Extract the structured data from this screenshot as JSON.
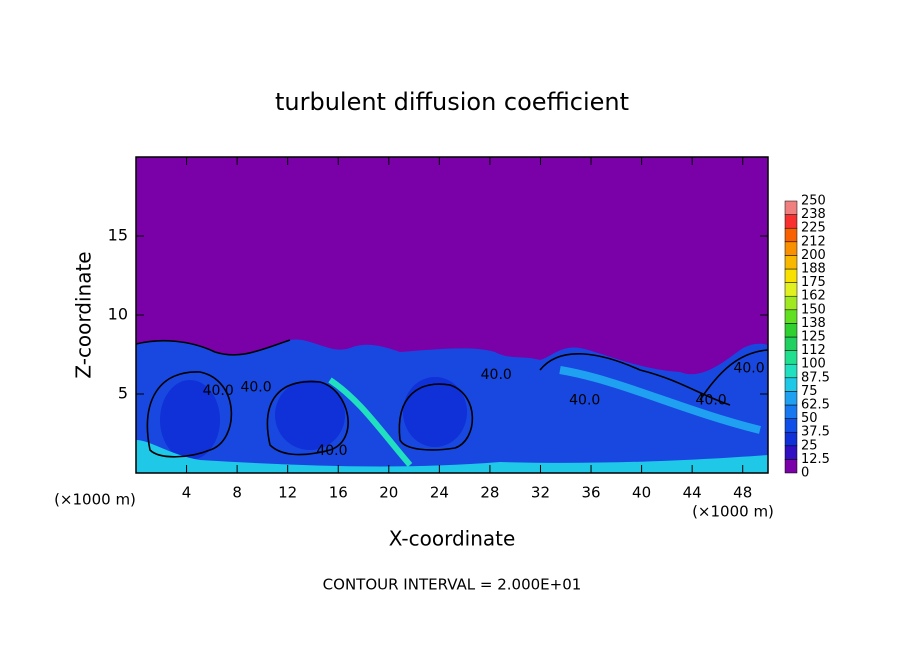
{
  "chart_data": {
    "type": "contour",
    "title": "turbulent diffusion coefficient",
    "x_label": "X-coordinate",
    "y_label": "Z-coordinate",
    "x_unit": "(×1000 m)",
    "footer": "CONTOUR INTERVAL = 2.000E+01",
    "xlim": [
      0,
      50
    ],
    "ylim": [
      0,
      20
    ],
    "xticks": [
      4,
      8,
      12,
      16,
      20,
      24,
      28,
      32,
      36,
      40,
      44,
      48
    ],
    "yticks": [
      5,
      10,
      15
    ],
    "contour_labels": [
      {
        "value": 40,
        "label": "40.0",
        "x": 6.5,
        "z": 5.2
      },
      {
        "value": 40,
        "label": "40.0",
        "x": 9.5,
        "z": 5.4
      },
      {
        "value": 40,
        "label": "40.0",
        "x": 15.5,
        "z": 1.4
      },
      {
        "value": 40,
        "label": "40.0",
        "x": 28.5,
        "z": 6.2
      },
      {
        "value": 40,
        "label": "40.0",
        "x": 35.5,
        "z": 4.6
      },
      {
        "value": 40,
        "label": "40.0",
        "x": 45.5,
        "z": 4.6
      },
      {
        "value": 40,
        "label": "40.0",
        "x": 48.5,
        "z": 6.6
      }
    ],
    "colorbar": {
      "levels": [
        0,
        12.5,
        25,
        37.5,
        50,
        62.5,
        75,
        87.5,
        100,
        {
          "value": 112.5,
          "label": "112"
        },
        125,
        {
          "value": 137.5,
          "label": "138"
        },
        150,
        {
          "value": 162.5,
          "label": "162"
        },
        175,
        {
          "value": 187.5,
          "label": "188"
        },
        200,
        {
          "value": 212.5,
          "label": "212"
        },
        225,
        {
          "value": 237.5,
          "label": "238"
        },
        250
      ],
      "colors": [
        "#7a00a8",
        "#3010c0",
        "#1030d8",
        "#1050e8",
        "#1878f0",
        "#20a0f0",
        "#20c8e8",
        "#20e0c0",
        "#20e090",
        "#20d060",
        "#30d030",
        "#60e020",
        "#a0e820",
        "#e0f020",
        "#f8e000",
        "#f8b800",
        "#f89000",
        "#f86000",
        "#f83030",
        "#f08080"
      ]
    }
  }
}
